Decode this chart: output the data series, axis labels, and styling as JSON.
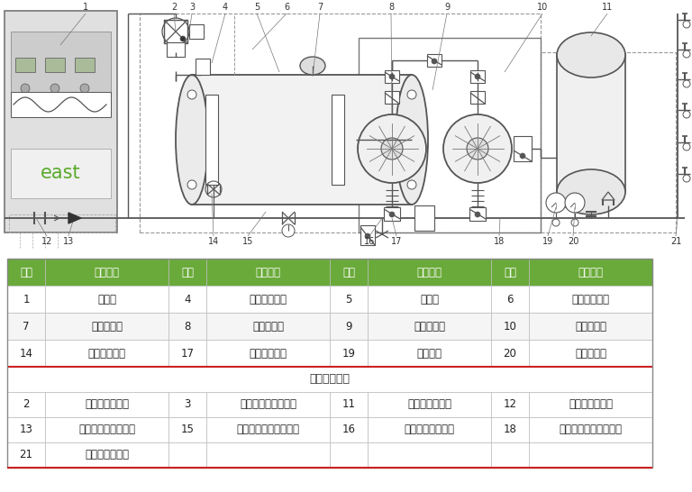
{
  "bg_color": "#ffffff",
  "table_header_color": "#6aaa3a",
  "header_text_color": "#ffffff",
  "border_color": "#bbbbbb",
  "line_color": "#555555",
  "header_row": [
    "序号",
    "配件名称",
    "序号",
    "配件名称",
    "序号",
    "配件名称",
    "序号",
    "配件名称"
  ],
  "main_rows": [
    [
      "1",
      "控制柜",
      "4",
      "稳流罐进水口",
      "5",
      "稳流罐",
      "6",
      "防负压控制器"
    ],
    [
      "7",
      "真空抑制器",
      "8",
      "蝶（闸）阀",
      "9",
      "旁路直通管",
      "10",
      "消声止回阀"
    ],
    [
      "14",
      "稳流罐排污口",
      "17",
      "自变频给水泵",
      "19",
      "超压保护",
      "20",
      "压力传感器"
    ]
  ],
  "optional_title": "非标配可选件",
  "optional_rows": [
    [
      "2",
      "流量计（可选）",
      "3",
      "管网保护器（可选）",
      "11",
      "稳压罐（可选）",
      "12",
      "过滤器（可选）"
    ],
    [
      "13",
      "倒流防止器（可选）",
      "15",
      "罐出口软连接（可选）",
      "16",
      "消毒接口（可选）",
      "18",
      "泵进口软连接（可选）"
    ],
    [
      "21",
      "安全阀（可选）",
      "",
      "",
      "",
      "",
      "",
      ""
    ]
  ],
  "fig_width": 7.68,
  "fig_height": 5.46
}
